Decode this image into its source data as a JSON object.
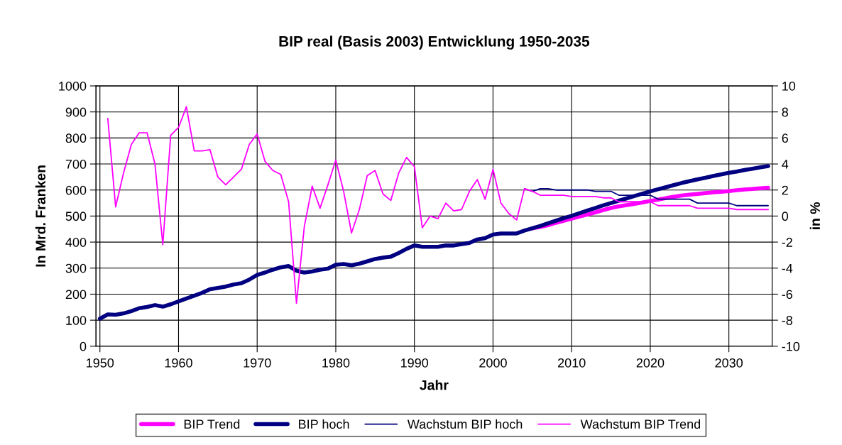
{
  "chart_data": {
    "type": "line",
    "title": "BIP real (Basis 2003) Entwicklung 1950-2035",
    "xlabel": "Jahr",
    "ylabel": "In Mrd. Franken",
    "y2label": "in %",
    "x": [
      1950,
      1951,
      1952,
      1953,
      1954,
      1955,
      1956,
      1957,
      1958,
      1959,
      1960,
      1961,
      1962,
      1963,
      1964,
      1965,
      1966,
      1967,
      1968,
      1969,
      1970,
      1971,
      1972,
      1973,
      1974,
      1975,
      1976,
      1977,
      1978,
      1979,
      1980,
      1981,
      1982,
      1983,
      1984,
      1985,
      1986,
      1987,
      1988,
      1989,
      1990,
      1991,
      1992,
      1993,
      1994,
      1995,
      1996,
      1997,
      1998,
      1999,
      2000,
      2001,
      2002,
      2003,
      2004,
      2005,
      2006,
      2007,
      2008,
      2009,
      2010,
      2011,
      2012,
      2013,
      2014,
      2015,
      2016,
      2017,
      2018,
      2019,
      2020,
      2021,
      2022,
      2023,
      2024,
      2025,
      2026,
      2027,
      2028,
      2029,
      2030,
      2031,
      2032,
      2033,
      2034,
      2035
    ],
    "xlim": [
      1949.5,
      2035.5
    ],
    "xticks": [
      1950,
      1960,
      1970,
      1980,
      1990,
      2000,
      2010,
      2020,
      2030
    ],
    "ylim": [
      0,
      1000
    ],
    "yticks": [
      0,
      100,
      200,
      300,
      400,
      500,
      600,
      700,
      800,
      900,
      1000
    ],
    "y2lim": [
      -10,
      10
    ],
    "y2ticks": [
      -10,
      -8,
      -6,
      -4,
      -2,
      0,
      2,
      4,
      6,
      8,
      10
    ],
    "grid": true,
    "legend": "bottom",
    "series": [
      {
        "name": "BIP Trend",
        "color": "#ff00ff",
        "values": [
          null,
          null,
          null,
          null,
          null,
          null,
          null,
          null,
          null,
          null,
          null,
          null,
          null,
          null,
          null,
          null,
          null,
          null,
          null,
          null,
          null,
          null,
          null,
          null,
          null,
          null,
          null,
          null,
          null,
          null,
          null,
          null,
          null,
          null,
          null,
          null,
          null,
          null,
          null,
          null,
          null,
          null,
          null,
          null,
          null,
          null,
          null,
          null,
          null,
          null,
          null,
          null,
          null,
          null,
          null,
          453,
          458,
          465,
          474,
          482,
          490,
          498,
          506,
          514,
          523,
          531,
          537,
          542,
          547,
          552,
          558,
          563,
          569,
          574,
          579,
          582,
          585,
          588,
          591,
          593,
          596,
          599,
          602,
          604,
          607,
          609
        ]
      },
      {
        "name": "BIP hoch",
        "color": "#000080",
        "values": [
          106,
          122,
          121,
          126,
          135,
          146,
          151,
          158,
          152,
          161,
          172,
          183,
          194,
          205,
          219,
          224,
          229,
          237,
          242,
          256,
          274,
          283,
          294,
          303,
          308,
          290,
          283,
          287,
          294,
          298,
          313,
          316,
          311,
          317,
          326,
          335,
          340,
          344,
          358,
          374,
          387,
          382,
          382,
          382,
          387,
          387,
          392,
          397,
          410,
          415,
          429,
          433,
          433,
          433,
          444,
          453,
          462,
          472,
          482,
          492,
          501,
          511,
          521,
          531,
          541,
          550,
          559,
          568,
          577,
          586,
          595,
          603,
          611,
          619,
          627,
          634,
          641,
          647,
          654,
          660,
          666,
          671,
          677,
          682,
          687,
          692
        ]
      },
      {
        "name": "Wachstum BIP hoch",
        "color": "#000080",
        "axis": "y2",
        "values": [
          null,
          null,
          null,
          null,
          null,
          null,
          null,
          null,
          null,
          null,
          null,
          null,
          null,
          null,
          null,
          null,
          null,
          null,
          null,
          null,
          null,
          null,
          null,
          null,
          null,
          null,
          null,
          null,
          null,
          null,
          null,
          null,
          null,
          null,
          null,
          null,
          null,
          null,
          null,
          null,
          null,
          null,
          null,
          null,
          null,
          null,
          null,
          null,
          null,
          null,
          null,
          null,
          null,
          null,
          2.1,
          1.9,
          2.1,
          2.1,
          2.0,
          2.0,
          2.0,
          2.0,
          2.0,
          1.9,
          1.9,
          1.9,
          1.6,
          1.6,
          1.6,
          1.6,
          1.6,
          1.3,
          1.3,
          1.3,
          1.3,
          1.3,
          1.0,
          1.0,
          1.0,
          1.0,
          1.0,
          0.8,
          0.8,
          0.8,
          0.8,
          0.8
        ]
      },
      {
        "name": "Wachstum BIP Trend",
        "color": "#ff00ff",
        "axis": "y2",
        "values": [
          null,
          7.5,
          0.7,
          3.3,
          5.5,
          6.4,
          6.4,
          4.0,
          -2.2,
          6.2,
          6.8,
          8.4,
          5.0,
          5.0,
          5.1,
          3.0,
          2.4,
          3.0,
          3.6,
          5.5,
          6.3,
          4.2,
          3.5,
          3.2,
          1.1,
          -6.7,
          -0.8,
          2.3,
          0.6,
          2.4,
          4.3,
          1.9,
          -1.3,
          0.5,
          3.1,
          3.5,
          1.7,
          1.2,
          3.3,
          4.5,
          3.8,
          -0.9,
          0.0,
          -0.2,
          1.0,
          0.4,
          0.5,
          1.9,
          2.8,
          1.3,
          3.6,
          1.0,
          0.2,
          -0.3,
          2.1,
          1.9,
          1.6,
          1.6,
          1.6,
          1.6,
          1.5,
          1.5,
          1.5,
          1.5,
          1.4,
          1.4,
          1.1,
          1.1,
          1.1,
          1.1,
          1.1,
          0.8,
          0.8,
          0.8,
          0.8,
          0.8,
          0.6,
          0.6,
          0.6,
          0.6,
          0.6,
          0.5,
          0.5,
          0.5,
          0.5,
          0.5
        ]
      }
    ]
  }
}
